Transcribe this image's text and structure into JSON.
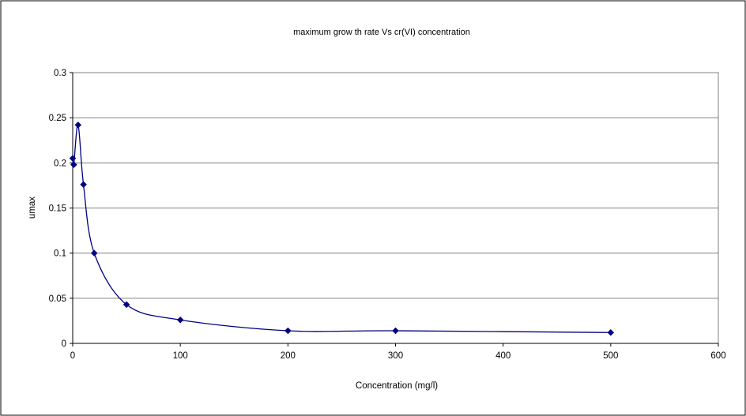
{
  "chart_data": {
    "type": "scatter",
    "title": "maximum grow th rate Vs cr(VI) concentration",
    "xlabel": "Concentration (mg/l)",
    "ylabel": "umax",
    "xlim": [
      0,
      600
    ],
    "ylim": [
      0,
      0.3
    ],
    "x_ticks": [
      0,
      100,
      200,
      300,
      400,
      500,
      600
    ],
    "y_ticks": [
      0,
      0.05,
      0.1,
      0.15,
      0.2,
      0.25,
      0.3
    ],
    "x_tick_labels": [
      "0",
      "100",
      "200",
      "300",
      "400",
      "500",
      "600"
    ],
    "y_tick_labels": [
      "0",
      "0.05",
      "0.1",
      "0.15",
      "0.2",
      "0.25",
      "0.3"
    ],
    "grid": "horizontal",
    "legend": "none",
    "smoothed_line": true,
    "series": [
      {
        "x": [
          0,
          1,
          5,
          10,
          20,
          50,
          100,
          200,
          300,
          500
        ],
        "y": [
          0.205,
          0.198,
          0.242,
          0.176,
          0.1,
          0.043,
          0.026,
          0.014,
          0.014,
          0.012
        ],
        "color": "#000080",
        "marker": "diamond"
      }
    ]
  }
}
